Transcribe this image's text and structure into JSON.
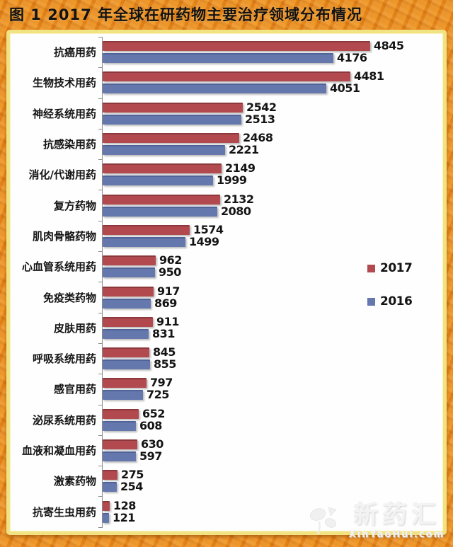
{
  "title": "图 1  2017 年全球在研药物主要治疗领域分布情况",
  "legend": {
    "items": [
      {
        "label": "2017",
        "color": "#b1494e"
      },
      {
        "label": "2016",
        "color": "#6478ae"
      }
    ]
  },
  "watermark": {
    "name": "新药汇",
    "site": "XinYaoHui.com",
    "icon": "clover-logo"
  },
  "colors": {
    "frame_orange": "#e5861d",
    "inner_border_yellow": "#f2e382",
    "bar_2017_red": "#b1494e",
    "bar_2016_blue": "#6478ae",
    "axis_gray": "#8a8a8a",
    "text_black": "#141414"
  },
  "chart_data": {
    "type": "bar",
    "orientation": "horizontal",
    "title": "图 1  2017 年全球在研药物主要治疗领域分布情况",
    "categories": [
      "抗癌用药",
      "生物技术用药",
      "神经系统用药",
      "抗感染用药",
      "消化/代谢用药",
      "复方药物",
      "肌肉骨骼药物",
      "心血管系统用药",
      "免疫类药物",
      "皮肤用药",
      "呼吸系统用药",
      "感官用药",
      "泌尿系统用药",
      "血液和凝血用药",
      "激素药物",
      "抗寄生虫用药"
    ],
    "series": [
      {
        "name": "2017",
        "color": "#b1494e",
        "values": [
          4845,
          4481,
          2542,
          2468,
          2149,
          2132,
          1574,
          962,
          917,
          911,
          845,
          797,
          652,
          630,
          275,
          128
        ]
      },
      {
        "name": "2016",
        "color": "#6478ae",
        "values": [
          4176,
          4051,
          2513,
          2221,
          1999,
          2080,
          1499,
          950,
          869,
          831,
          855,
          725,
          608,
          597,
          254,
          121
        ]
      }
    ],
    "xlim": [
      0,
      5000
    ],
    "value_labels": true,
    "grid": false,
    "legend_position": "right"
  }
}
